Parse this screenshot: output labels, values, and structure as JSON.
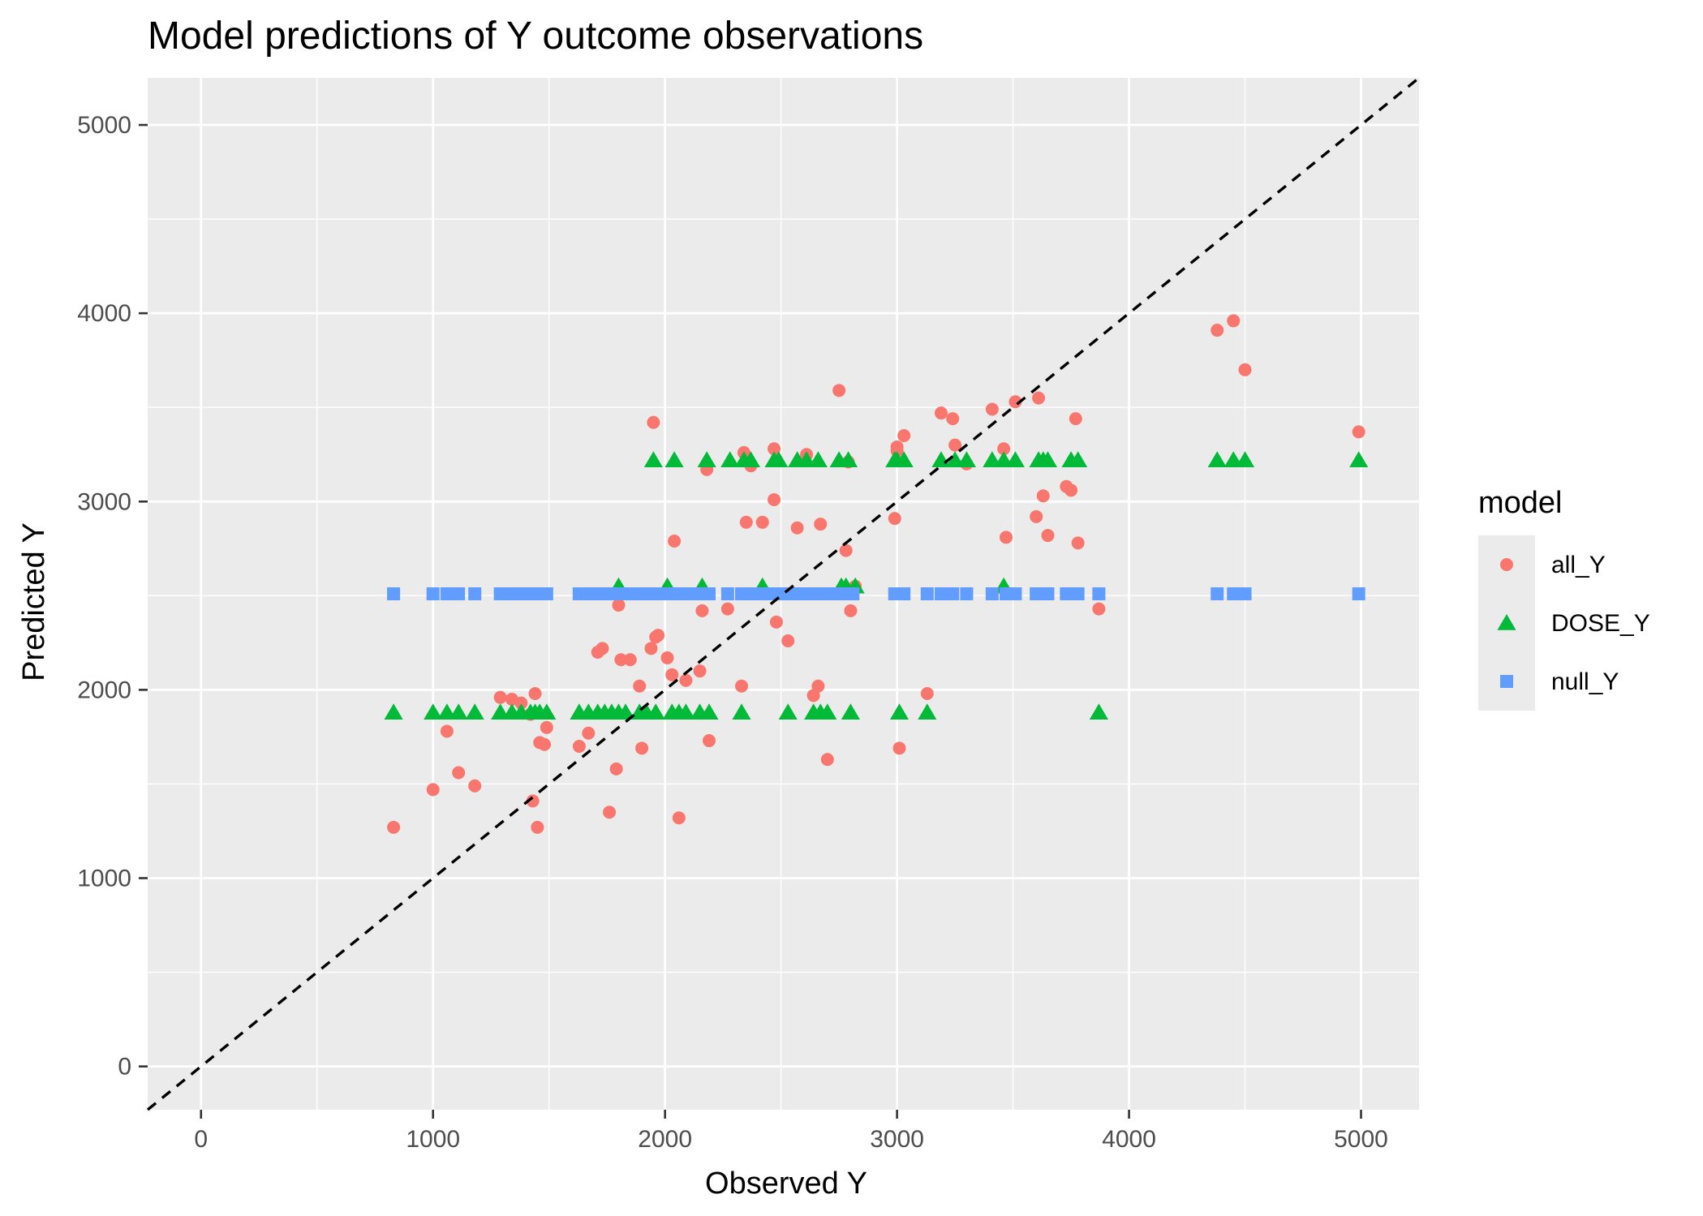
{
  "chart_data": {
    "type": "scatter",
    "title": "Model predictions of Y outcome observations",
    "xlabel": "Observed Y",
    "ylabel": "Predicted Y",
    "xlim": [
      -230,
      5250
    ],
    "ylim": [
      -230,
      5250
    ],
    "x_ticks": [
      0,
      1000,
      2000,
      3000,
      4000,
      5000
    ],
    "y_ticks": [
      0,
      1000,
      2000,
      3000,
      4000,
      5000
    ],
    "x_tick_labels": [
      "0",
      "1000",
      "2000",
      "3000",
      "4000",
      "5000"
    ],
    "y_tick_labels": [
      "0",
      "1000",
      "2000",
      "3000",
      "4000",
      "5000"
    ],
    "grid": true,
    "legend": {
      "title": "model",
      "position": "right"
    },
    "reference_line": {
      "type": "identity",
      "slope": 1,
      "intercept": 0,
      "style": "dashed",
      "color": "#000000"
    },
    "series": [
      {
        "name": "all_Y",
        "shape": "circle",
        "color": "#F8766D",
        "points": [
          [
            830,
            1270
          ],
          [
            1000,
            1470
          ],
          [
            1060,
            1780
          ],
          [
            1110,
            1560
          ],
          [
            1180,
            1490
          ],
          [
            1290,
            1960
          ],
          [
            1340,
            1950
          ],
          [
            1380,
            1930
          ],
          [
            1420,
            1870
          ],
          [
            1430,
            1410
          ],
          [
            1440,
            1980
          ],
          [
            1450,
            1270
          ],
          [
            1460,
            1720
          ],
          [
            1480,
            1710
          ],
          [
            1490,
            1800
          ],
          [
            1630,
            1700
          ],
          [
            1670,
            1770
          ],
          [
            1710,
            2200
          ],
          [
            1730,
            2220
          ],
          [
            1760,
            1350
          ],
          [
            1790,
            1580
          ],
          [
            1800,
            2450
          ],
          [
            1810,
            2160
          ],
          [
            1850,
            2160
          ],
          [
            1890,
            2020
          ],
          [
            1900,
            1690
          ],
          [
            1940,
            2220
          ],
          [
            1950,
            3420
          ],
          [
            1960,
            2280
          ],
          [
            1970,
            2290
          ],
          [
            2010,
            2170
          ],
          [
            2030,
            2080
          ],
          [
            2040,
            2790
          ],
          [
            2060,
            1320
          ],
          [
            2090,
            2050
          ],
          [
            2150,
            2100
          ],
          [
            2160,
            2420
          ],
          [
            2180,
            3170
          ],
          [
            2190,
            1730
          ],
          [
            2270,
            2430
          ],
          [
            2330,
            2020
          ],
          [
            2340,
            3260
          ],
          [
            2350,
            2890
          ],
          [
            2370,
            3190
          ],
          [
            2420,
            2890
          ],
          [
            2470,
            3280
          ],
          [
            2470,
            3010
          ],
          [
            2480,
            2360
          ],
          [
            2530,
            2260
          ],
          [
            2570,
            2860
          ],
          [
            2610,
            3250
          ],
          [
            2640,
            1970
          ],
          [
            2660,
            2020
          ],
          [
            2670,
            2880
          ],
          [
            2700,
            1630
          ],
          [
            2750,
            3590
          ],
          [
            2780,
            2740
          ],
          [
            2790,
            3210
          ],
          [
            2800,
            2420
          ],
          [
            2820,
            2550
          ],
          [
            2990,
            2910
          ],
          [
            3000,
            3270
          ],
          [
            3000,
            3290
          ],
          [
            3010,
            1690
          ],
          [
            3030,
            3350
          ],
          [
            3130,
            1980
          ],
          [
            3190,
            3470
          ],
          [
            3240,
            3440
          ],
          [
            3250,
            3300
          ],
          [
            3300,
            3200
          ],
          [
            3410,
            3490
          ],
          [
            3460,
            3280
          ],
          [
            3470,
            2810
          ],
          [
            3510,
            3530
          ],
          [
            3600,
            2920
          ],
          [
            3610,
            3550
          ],
          [
            3630,
            3030
          ],
          [
            3650,
            2820
          ],
          [
            3730,
            3080
          ],
          [
            3750,
            3060
          ],
          [
            3770,
            3440
          ],
          [
            3780,
            2780
          ],
          [
            3870,
            2430
          ],
          [
            4380,
            3910
          ],
          [
            4450,
            3960
          ],
          [
            4500,
            3700
          ],
          [
            4990,
            3370
          ]
        ]
      },
      {
        "name": "DOSE_Y",
        "shape": "triangle",
        "color": "#00BA38",
        "points": [
          [
            830,
            1880
          ],
          [
            1000,
            1880
          ],
          [
            1060,
            1880
          ],
          [
            1110,
            1880
          ],
          [
            1180,
            1880
          ],
          [
            1290,
            1880
          ],
          [
            1340,
            1880
          ],
          [
            1380,
            1880
          ],
          [
            1420,
            1880
          ],
          [
            1440,
            1880
          ],
          [
            1460,
            1880
          ],
          [
            1490,
            1880
          ],
          [
            1630,
            1880
          ],
          [
            1670,
            1880
          ],
          [
            1710,
            1880
          ],
          [
            1740,
            1880
          ],
          [
            1770,
            1880
          ],
          [
            1800,
            1880
          ],
          [
            1830,
            1880
          ],
          [
            1890,
            1880
          ],
          [
            1920,
            1880
          ],
          [
            1960,
            1880
          ],
          [
            2030,
            1880
          ],
          [
            2060,
            1880
          ],
          [
            2090,
            1880
          ],
          [
            2150,
            1880
          ],
          [
            2190,
            1880
          ],
          [
            2330,
            1880
          ],
          [
            2530,
            1880
          ],
          [
            2640,
            1880
          ],
          [
            2670,
            1880
          ],
          [
            2700,
            1880
          ],
          [
            2800,
            1880
          ],
          [
            3010,
            1880
          ],
          [
            3130,
            1880
          ],
          [
            3870,
            1880
          ],
          [
            1800,
            2550
          ],
          [
            2010,
            2550
          ],
          [
            2160,
            2550
          ],
          [
            2420,
            2550
          ],
          [
            2760,
            2550
          ],
          [
            2780,
            2550
          ],
          [
            2820,
            2550
          ],
          [
            3460,
            2550
          ],
          [
            1950,
            3220
          ],
          [
            2040,
            3220
          ],
          [
            2180,
            3220
          ],
          [
            2280,
            3220
          ],
          [
            2340,
            3220
          ],
          [
            2370,
            3220
          ],
          [
            2470,
            3220
          ],
          [
            2490,
            3220
          ],
          [
            2570,
            3220
          ],
          [
            2610,
            3220
          ],
          [
            2660,
            3220
          ],
          [
            2750,
            3220
          ],
          [
            2790,
            3220
          ],
          [
            2990,
            3220
          ],
          [
            3000,
            3220
          ],
          [
            3030,
            3220
          ],
          [
            3190,
            3220
          ],
          [
            3250,
            3220
          ],
          [
            3300,
            3220
          ],
          [
            3410,
            3220
          ],
          [
            3460,
            3220
          ],
          [
            3510,
            3220
          ],
          [
            3610,
            3220
          ],
          [
            3630,
            3220
          ],
          [
            3650,
            3220
          ],
          [
            3750,
            3220
          ],
          [
            3780,
            3220
          ],
          [
            4380,
            3220
          ],
          [
            4450,
            3220
          ],
          [
            4500,
            3220
          ],
          [
            4990,
            3220
          ]
        ]
      },
      {
        "name": "null_Y",
        "shape": "square",
        "color": "#619CFF",
        "points": [
          [
            830,
            2510
          ],
          [
            1000,
            2510
          ],
          [
            1060,
            2510
          ],
          [
            1110,
            2510
          ],
          [
            1180,
            2510
          ],
          [
            1290,
            2510
          ],
          [
            1340,
            2510
          ],
          [
            1380,
            2510
          ],
          [
            1420,
            2510
          ],
          [
            1440,
            2510
          ],
          [
            1460,
            2510
          ],
          [
            1490,
            2510
          ],
          [
            1630,
            2510
          ],
          [
            1670,
            2510
          ],
          [
            1710,
            2510
          ],
          [
            1740,
            2510
          ],
          [
            1770,
            2510
          ],
          [
            1800,
            2510
          ],
          [
            1830,
            2510
          ],
          [
            1860,
            2510
          ],
          [
            1890,
            2510
          ],
          [
            1920,
            2510
          ],
          [
            1950,
            2510
          ],
          [
            1980,
            2510
          ],
          [
            2010,
            2510
          ],
          [
            2040,
            2510
          ],
          [
            2070,
            2510
          ],
          [
            2100,
            2510
          ],
          [
            2130,
            2510
          ],
          [
            2160,
            2510
          ],
          [
            2190,
            2510
          ],
          [
            2270,
            2510
          ],
          [
            2330,
            2510
          ],
          [
            2360,
            2510
          ],
          [
            2390,
            2510
          ],
          [
            2420,
            2510
          ],
          [
            2450,
            2510
          ],
          [
            2480,
            2510
          ],
          [
            2510,
            2510
          ],
          [
            2540,
            2510
          ],
          [
            2570,
            2510
          ],
          [
            2600,
            2510
          ],
          [
            2630,
            2510
          ],
          [
            2660,
            2510
          ],
          [
            2690,
            2510
          ],
          [
            2720,
            2510
          ],
          [
            2750,
            2510
          ],
          [
            2780,
            2510
          ],
          [
            2810,
            2510
          ],
          [
            2990,
            2510
          ],
          [
            3030,
            2510
          ],
          [
            3130,
            2510
          ],
          [
            3190,
            2510
          ],
          [
            3240,
            2510
          ],
          [
            3300,
            2510
          ],
          [
            3410,
            2510
          ],
          [
            3470,
            2510
          ],
          [
            3510,
            2510
          ],
          [
            3600,
            2510
          ],
          [
            3650,
            2510
          ],
          [
            3730,
            2510
          ],
          [
            3780,
            2510
          ],
          [
            3870,
            2510
          ],
          [
            4380,
            2510
          ],
          [
            4450,
            2510
          ],
          [
            4500,
            2510
          ],
          [
            4990,
            2510
          ]
        ]
      }
    ]
  }
}
